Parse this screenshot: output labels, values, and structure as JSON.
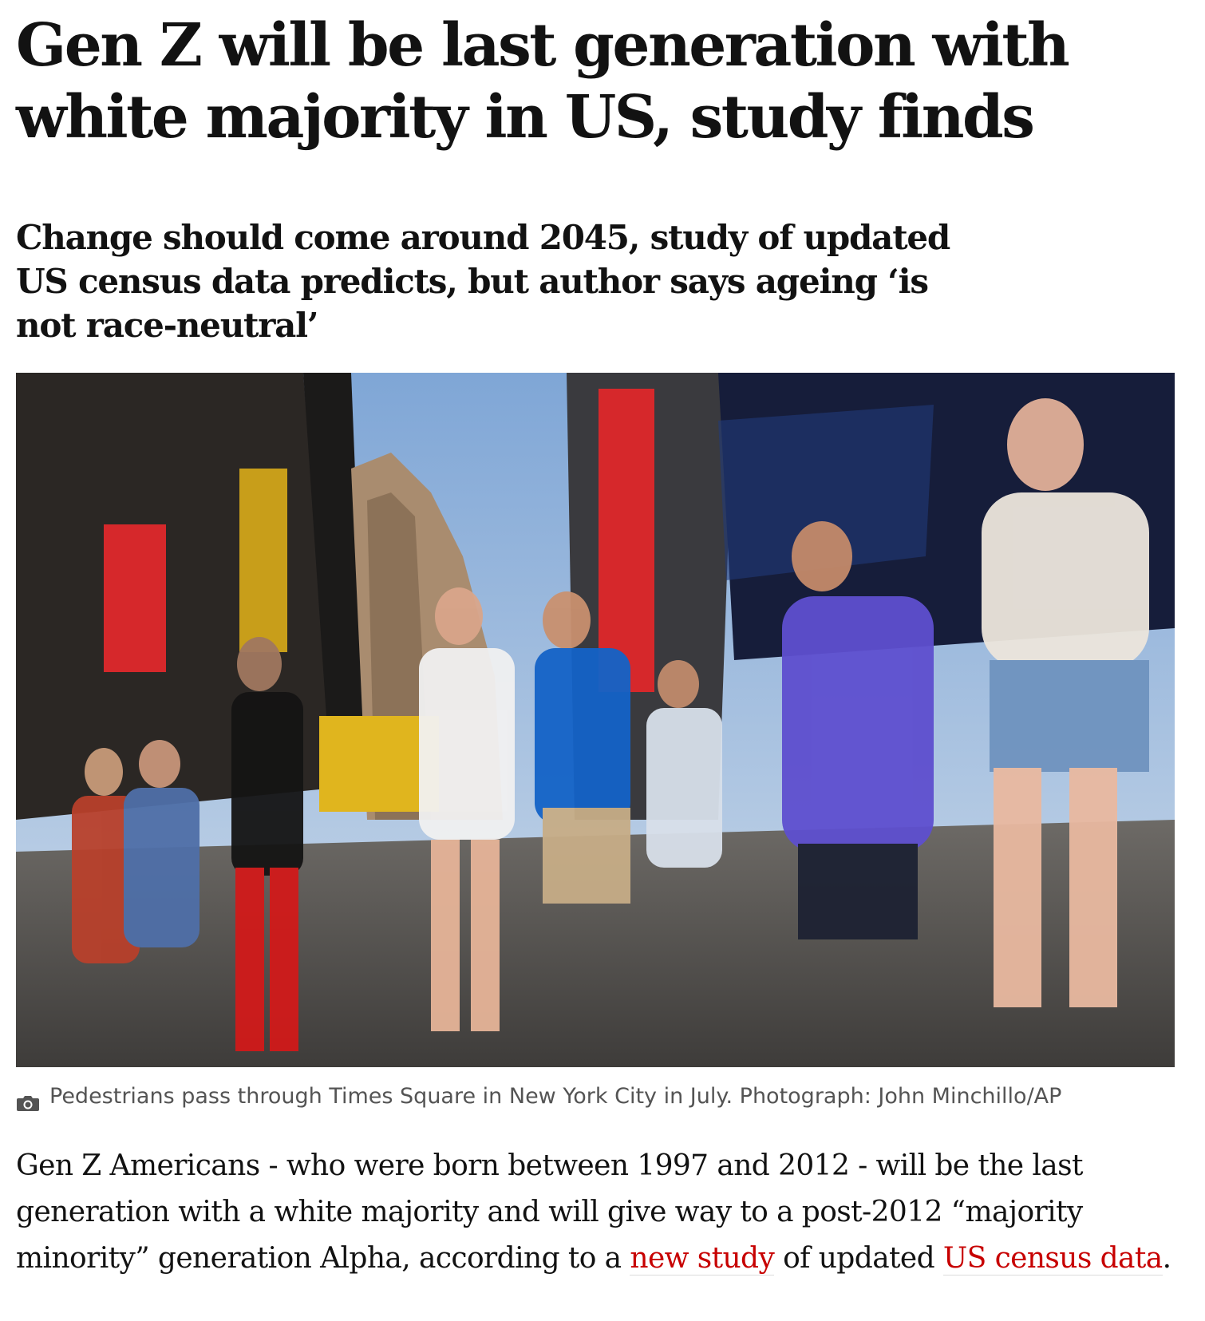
{
  "article": {
    "headline": "Gen Z will be last generation with white majority in US, study finds",
    "standfirst": "Change should come around 2045, study of updated US census data predicts, but author says ageing ‘is not race-neutral’",
    "image": {
      "icon": "camera-icon",
      "caption": "Pedestrians pass through Times Square in New York City in July. Photograph: John Minchillo/AP"
    },
    "body": {
      "text_1": "Gen Z Americans - who were born between 1997 and 2012 - will be the last generation with a white majority and will give way to a post-2012 “majority minority” generation Alpha, according to a ",
      "link_1": "new study",
      "text_2": " of updated ",
      "link_2": "US census data",
      "text_3": "."
    }
  },
  "colors": {
    "text": "#121212",
    "link": "#c70000",
    "caption": "#545454"
  }
}
